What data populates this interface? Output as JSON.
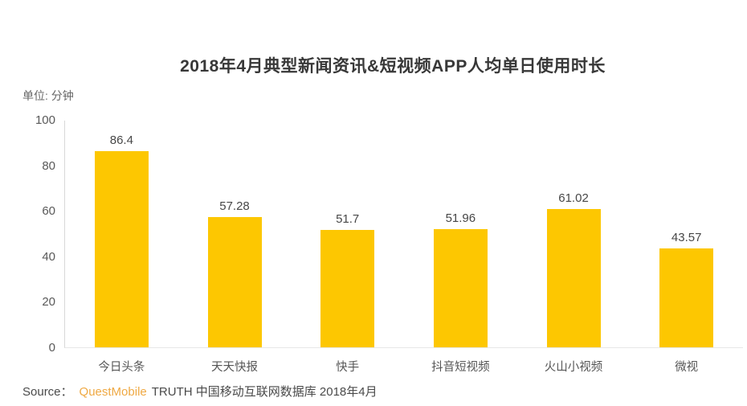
{
  "chart_data": {
    "type": "bar",
    "title": "2018年4月典型新闻资讯&短视频APP人均单日使用时长",
    "unit_label": "单位: 分钟",
    "categories": [
      "今日头条",
      "天天快报",
      "快手",
      "抖音短视频",
      "火山小视频",
      "微视"
    ],
    "values": [
      86.4,
      57.28,
      51.7,
      51.96,
      61.02,
      43.57
    ],
    "value_labels": [
      "86.4",
      "57.28",
      "51.7",
      "51.96",
      "61.02",
      "43.57"
    ],
    "xlabel": "",
    "ylabel": "单位: 分钟",
    "ylim": [
      0,
      100
    ],
    "yticks": [
      100,
      80,
      60,
      40,
      20,
      0
    ],
    "bar_color": "#fdc701",
    "grid": false,
    "legend": "none",
    "axis_line_color": "#d8d8d8",
    "baseline_color": "#e7e7e7"
  },
  "source": {
    "prefix": "Source：",
    "brand": "QuestMobile",
    "suffix": "TRUTH 中国移动互联网数据库 2018年4月"
  }
}
